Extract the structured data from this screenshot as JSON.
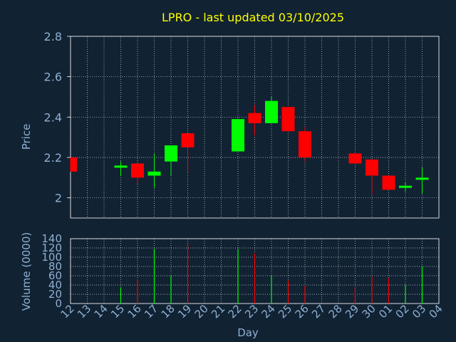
{
  "chart_data": {
    "type": "candlestick",
    "title": "LPRO - last updated 03/10/2025",
    "xlabel": "Day",
    "ylabel": "Price",
    "volume_label": "Volume (0000)",
    "grid": true,
    "x_ticks": [
      "12",
      "13",
      "14",
      "15",
      "16",
      "17",
      "18",
      "19",
      "20",
      "21",
      "22",
      "23",
      "24",
      "25",
      "26",
      "27",
      "28",
      "29",
      "30",
      "01",
      "02",
      "03",
      "04"
    ],
    "price_ticks": [
      "2.8",
      "2.6",
      "2.4",
      "2.2",
      "2"
    ],
    "price_tick_values": [
      2.8,
      2.6,
      2.4,
      2.2,
      2.0
    ],
    "price_range": [
      1.9,
      2.8
    ],
    "volume_ticks": [
      "140",
      "120",
      "100",
      "80",
      "60",
      "40",
      "20",
      "0"
    ],
    "volume_tick_values": [
      140,
      120,
      100,
      80,
      60,
      40,
      20,
      0
    ],
    "volume_range": [
      0,
      140
    ],
    "colors": {
      "background": "#112233",
      "up": "#00ff00",
      "down": "#ff0000",
      "grid": "#ffffff",
      "axis_text": "#8fb0d0",
      "title": "#ffff00"
    },
    "candles": [
      {
        "day": "12",
        "open": 2.2,
        "high": 2.2,
        "low": 2.13,
        "close": 2.13,
        "volume": 0
      },
      {
        "day": "15",
        "open": 2.15,
        "high": 2.18,
        "low": 2.11,
        "close": 2.16,
        "volume": 35
      },
      {
        "day": "16",
        "open": 2.17,
        "high": 2.17,
        "low": 2.07,
        "close": 2.1,
        "volume": 52
      },
      {
        "day": "17",
        "open": 2.11,
        "high": 2.22,
        "low": 2.05,
        "close": 2.13,
        "volume": 118
      },
      {
        "day": "18",
        "open": 2.18,
        "high": 2.26,
        "low": 2.11,
        "close": 2.26,
        "volume": 60
      },
      {
        "day": "19",
        "open": 2.32,
        "high": 2.32,
        "low": 2.12,
        "close": 2.25,
        "volume": 128
      },
      {
        "day": "22",
        "open": 2.23,
        "high": 2.39,
        "low": 2.23,
        "close": 2.39,
        "volume": 118
      },
      {
        "day": "23",
        "open": 2.42,
        "high": 2.46,
        "low": 2.31,
        "close": 2.37,
        "volume": 108
      },
      {
        "day": "24",
        "open": 2.37,
        "high": 2.5,
        "low": 2.37,
        "close": 2.48,
        "volume": 60
      },
      {
        "day": "25",
        "open": 2.45,
        "high": 2.45,
        "low": 2.33,
        "close": 2.33,
        "volume": 50
      },
      {
        "day": "26",
        "open": 2.33,
        "high": 2.35,
        "low": 2.18,
        "close": 2.2,
        "volume": 38
      },
      {
        "day": "29",
        "open": 2.22,
        "high": 2.22,
        "low": 2.17,
        "close": 2.17,
        "volume": 35
      },
      {
        "day": "30",
        "open": 2.19,
        "high": 2.19,
        "low": 2.02,
        "close": 2.11,
        "volume": 58
      },
      {
        "day": "01",
        "open": 2.11,
        "high": 2.11,
        "low": 2.04,
        "close": 2.04,
        "volume": 55
      },
      {
        "day": "02",
        "open": 2.05,
        "high": 2.08,
        "low": 2.03,
        "close": 2.06,
        "volume": 40
      },
      {
        "day": "03",
        "open": 2.09,
        "high": 2.15,
        "low": 2.02,
        "close": 2.1,
        "volume": 80
      }
    ]
  }
}
